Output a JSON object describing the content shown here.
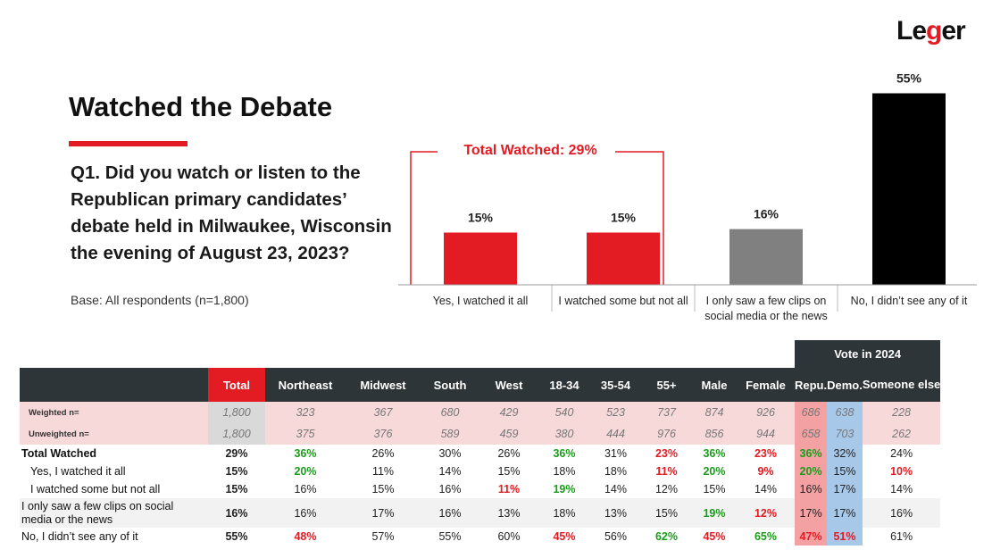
{
  "logo": {
    "pre": "Le",
    "accent": "g",
    "post": "er"
  },
  "title": "Watched the Debate",
  "question": "Q1. Did you watch or listen to the Republican primary candidates’ debate held in Milwaukee, Wisconsin the evening of August 23, 2023?",
  "base": "Base: All respondents (n=1,800)",
  "colors": {
    "red": "#e31b23",
    "gray": "#808080",
    "black": "#000000",
    "green": "#1a9c1a",
    "header": "#2d3538"
  },
  "chart_data": {
    "type": "bar",
    "categories": [
      "Yes, I watched it all",
      "I watched some but not all",
      "I only saw a few clips on social media or the news",
      "No, I didn’t see any of it"
    ],
    "category_lines": [
      [
        "Yes, I watched it all"
      ],
      [
        "I watched some but not all"
      ],
      [
        "I only saw a few clips on",
        "social media or the news"
      ],
      [
        "No, I didn’t see any of it"
      ]
    ],
    "values": [
      15,
      15,
      16,
      55
    ],
    "value_labels": [
      "15%",
      "15%",
      "16%",
      "55%"
    ],
    "bar_colors": [
      "#e31b23",
      "#e31b23",
      "#808080",
      "#000000"
    ],
    "ylim": [
      0,
      60
    ],
    "grid": false,
    "annotation": {
      "prefix": "Total Watched: ",
      "value": "29%"
    }
  },
  "table": {
    "vote_header": "Vote in 2024",
    "columns": [
      "Total",
      "Northeast",
      "Midwest",
      "South",
      "West",
      "18-34",
      "35-54",
      "55+",
      "Male",
      "Female",
      "Repu.",
      "Demo.",
      "Someone else"
    ],
    "base_rows": [
      {
        "label": "Weighted n=",
        "values": [
          "1,800",
          "323",
          "367",
          "680",
          "429",
          "540",
          "523",
          "737",
          "874",
          "926",
          "686",
          "638",
          "228"
        ]
      },
      {
        "label": "Unweighted n=",
        "values": [
          "1,800",
          "375",
          "376",
          "589",
          "459",
          "380",
          "444",
          "976",
          "856",
          "944",
          "658",
          "703",
          "262"
        ]
      }
    ],
    "rows": [
      {
        "label": [
          "Total Watched"
        ],
        "bold": true,
        "indent": false,
        "shade": false,
        "values": [
          "29%",
          "36%",
          "26%",
          "30%",
          "26%",
          "36%",
          "31%",
          "23%",
          "36%",
          "23%",
          "36%",
          "32%",
          "24%"
        ],
        "flags": [
          "",
          "up",
          "",
          "",
          "",
          "up",
          "",
          "down",
          "up",
          "down",
          "up",
          "",
          ""
        ]
      },
      {
        "label": [
          "Yes, I watched it all"
        ],
        "bold": false,
        "indent": true,
        "shade": false,
        "values": [
          "15%",
          "20%",
          "11%",
          "14%",
          "15%",
          "18%",
          "18%",
          "11%",
          "20%",
          "9%",
          "20%",
          "15%",
          "10%"
        ],
        "flags": [
          "",
          "up",
          "",
          "",
          "",
          "",
          "",
          "down",
          "up",
          "down",
          "up",
          "",
          "down"
        ]
      },
      {
        "label": [
          "I watched some but not all"
        ],
        "bold": false,
        "indent": true,
        "shade": false,
        "values": [
          "15%",
          "16%",
          "15%",
          "16%",
          "11%",
          "19%",
          "14%",
          "12%",
          "15%",
          "14%",
          "16%",
          "17%",
          "14%"
        ],
        "flags": [
          "",
          "",
          "",
          "",
          "down",
          "up",
          "",
          "",
          "",
          "",
          "",
          "",
          ""
        ]
      },
      {
        "label": [
          "I only saw a few clips on social",
          "media or the news"
        ],
        "bold": false,
        "indent": false,
        "shade": true,
        "values": [
          "16%",
          "16%",
          "17%",
          "16%",
          "13%",
          "18%",
          "13%",
          "15%",
          "19%",
          "12%",
          "17%",
          "17%",
          "16%"
        ],
        "flags": [
          "",
          "",
          "",
          "",
          "",
          "",
          "",
          "",
          "up",
          "down",
          "",
          "",
          ""
        ]
      },
      {
        "label": [
          "No, I didn’t see any of it"
        ],
        "bold": false,
        "indent": false,
        "shade": false,
        "values": [
          "55%",
          "48%",
          "57%",
          "55%",
          "60%",
          "45%",
          "56%",
          "62%",
          "45%",
          "65%",
          "47%",
          "51%",
          "61%"
        ],
        "flags": [
          "",
          "down",
          "",
          "",
          "",
          "down",
          "",
          "up",
          "down",
          "up",
          "down",
          "down",
          ""
        ]
      }
    ]
  }
}
